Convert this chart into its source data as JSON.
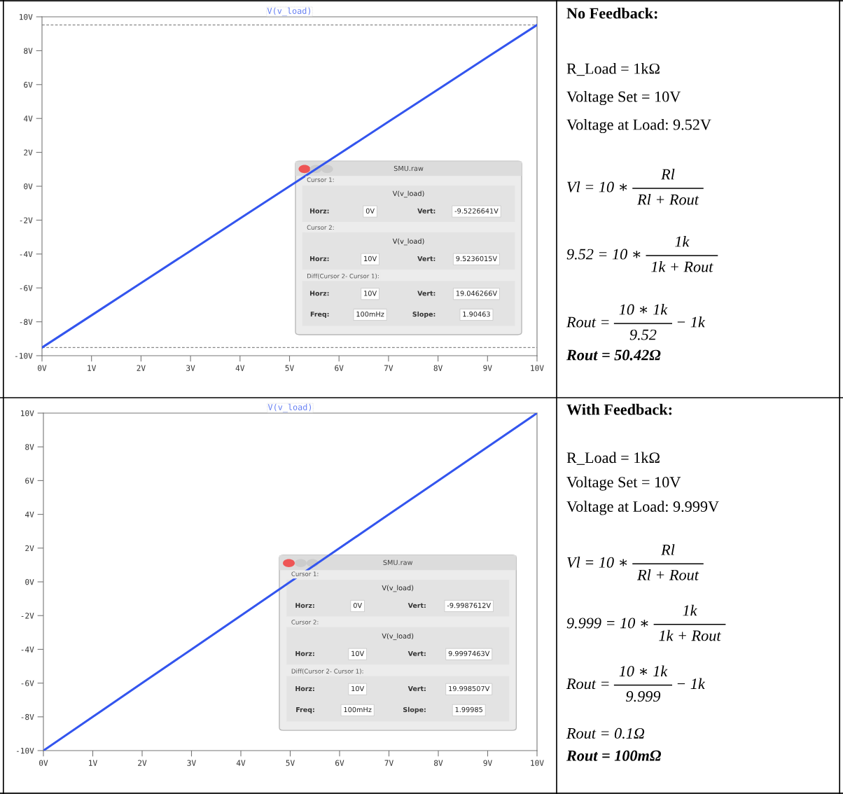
{
  "chart_data": [
    {
      "type": "line",
      "x": [
        0,
        1,
        2,
        3,
        4,
        5,
        6,
        7,
        8,
        9,
        10
      ],
      "xlim": [
        0,
        10
      ],
      "ylim": [
        -10,
        10
      ],
      "series": [
        {
          "name": "V(v_load)",
          "color": "#3355ee",
          "values": [
            -9.52,
            -7.62,
            -5.71,
            -3.81,
            -1.9,
            0,
            1.9,
            3.81,
            5.71,
            7.62,
            9.52
          ]
        }
      ],
      "legend": "top",
      "xticks": [
        {
          "value": 0,
          "label": "0V"
        },
        {
          "value": 1,
          "label": "1V"
        },
        {
          "value": 2,
          "label": "2V"
        },
        {
          "value": 3,
          "label": "3V"
        },
        {
          "value": 4,
          "label": "4V"
        },
        {
          "value": 5,
          "label": "5V"
        },
        {
          "value": 6,
          "label": "6V"
        },
        {
          "value": 7,
          "label": "7V"
        },
        {
          "value": 8,
          "label": "8V"
        },
        {
          "value": 9,
          "label": "9V"
        },
        {
          "value": 10,
          "label": "10V"
        }
      ],
      "yticks": [
        {
          "value": -10,
          "label": "-10V"
        },
        {
          "value": -8,
          "label": "-8V"
        },
        {
          "value": -6,
          "label": "-6V"
        },
        {
          "value": -4,
          "label": "-4V"
        },
        {
          "value": -2,
          "label": "-2V"
        },
        {
          "value": 0,
          "label": "0V"
        },
        {
          "value": 2,
          "label": "2V"
        },
        {
          "value": 4,
          "label": "4V"
        },
        {
          "value": 6,
          "label": "6V"
        },
        {
          "value": 8,
          "label": "8V"
        },
        {
          "value": 10,
          "label": "10V"
        }
      ],
      "ref_lines": [
        {
          "axis": "y",
          "value": 9.52,
          "color": "#888888",
          "line_style": "dashed"
        },
        {
          "axis": "y",
          "value": -9.52,
          "color": "#888888",
          "line_style": "dashed"
        }
      ],
      "annotations": [
        "SMU.raw",
        "Cursor 1:",
        "V(v_load)",
        "Horz:",
        "0V",
        "Vert:",
        "-9.5226641V",
        "Cursor 2:",
        "V(v_load)",
        "Horz:",
        "10V",
        "Vert:",
        "9.5236015V",
        "Diff(Cursor 2- Cursor 1):",
        "Horz:",
        "10V",
        "Vert:",
        "19.046266V",
        "Freq:",
        "100mHz",
        "Slope:",
        "1.90463"
      ]
    },
    {
      "type": "other",
      "title": "No Feedback:",
      "annotations": [
        "R_Load = 1kΩ",
        "Voltage Set = 10V",
        "Voltage at Load: 9.52V",
        "Vl = 10 ∗",
        "Rl",
        "Rl + Rout",
        "9.52 = 10 ∗",
        "1k",
        "1k + Rout",
        "Rout =",
        "10 ∗ 1k",
        "9.52",
        "− 1k",
        "Rout = 50.42Ω"
      ]
    },
    {
      "type": "line",
      "x": [
        0,
        1,
        2,
        3,
        4,
        5,
        6,
        7,
        8,
        9,
        10
      ],
      "xlim": [
        0,
        10
      ],
      "ylim": [
        -10,
        10
      ],
      "series": [
        {
          "name": "V(v_load)",
          "color": "#3355ee",
          "values": [
            -10,
            -8,
            -6,
            -4,
            -2,
            0,
            2,
            4,
            6,
            8,
            10
          ]
        }
      ],
      "legend": "top",
      "xticks": [
        {
          "value": 0,
          "label": "0V"
        },
        {
          "value": 1,
          "label": "1V"
        },
        {
          "value": 2,
          "label": "2V"
        },
        {
          "value": 3,
          "label": "3V"
        },
        {
          "value": 4,
          "label": "4V"
        },
        {
          "value": 5,
          "label": "5V"
        },
        {
          "value": 6,
          "label": "6V"
        },
        {
          "value": 7,
          "label": "7V"
        },
        {
          "value": 8,
          "label": "8V"
        },
        {
          "value": 9,
          "label": "9V"
        },
        {
          "value": 10,
          "label": "10V"
        }
      ],
      "yticks": [
        {
          "value": -10,
          "label": "-10V"
        },
        {
          "value": -8,
          "label": "-8V"
        },
        {
          "value": -6,
          "label": "-6V"
        },
        {
          "value": -4,
          "label": "-4V"
        },
        {
          "value": -2,
          "label": "-2V"
        },
        {
          "value": 0,
          "label": "0V"
        },
        {
          "value": 2,
          "label": "2V"
        },
        {
          "value": 4,
          "label": "4V"
        },
        {
          "value": 6,
          "label": "6V"
        },
        {
          "value": 8,
          "label": "8V"
        },
        {
          "value": 10,
          "label": "10V"
        }
      ],
      "annotations": [
        "SMU.raw",
        "Cursor 1:",
        "V(v_load)",
        "Horz:",
        "0V",
        "Vert:",
        "-9.9987612V",
        "Cursor 2:",
        "V(v_load)",
        "Horz:",
        "10V",
        "Vert:",
        "9.9997463V",
        "Diff(Cursor 2- Cursor 1):",
        "Horz:",
        "10V",
        "Vert:",
        "19.998507V",
        "Freq:",
        "100mHz",
        "Slope:",
        "1.99985"
      ]
    },
    {
      "type": "other",
      "title": "With Feedback:",
      "annotations": [
        "R_Load = 1kΩ",
        "Voltage Set = 10V",
        "Voltage at Load: 9.999V",
        "Vl = 10 ∗",
        "Rl",
        "Rl + Rout",
        "9.999 = 10 ∗",
        "1k",
        "1k + Rout",
        "Rout =",
        "10 ∗ 1k",
        "9.999",
        "− 1k",
        "Rout = 0.1Ω",
        "Rout = 100mΩ"
      ]
    }
  ]
}
